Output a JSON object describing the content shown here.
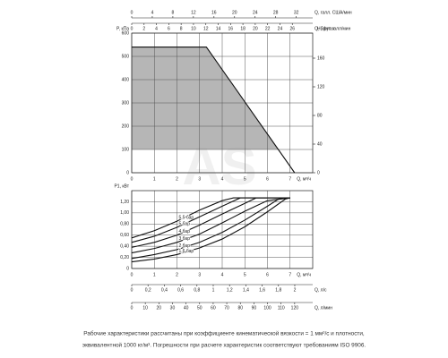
{
  "chart_data": [
    {
      "type": "line",
      "ylabel": "P, кПа",
      "ylim": [
        0,
        600
      ],
      "yticks": [
        0,
        100,
        200,
        300,
        400,
        500,
        600
      ],
      "y2label": "H, футы",
      "y2lim": [
        0,
        195
      ],
      "y2ticks": [
        0,
        40,
        80,
        120,
        160
      ],
      "xlabel": "Q, м³/ч",
      "xlim": [
        0,
        8
      ],
      "xticks": [
        0,
        1,
        2,
        3,
        4,
        5,
        6,
        7
      ],
      "extra_x_axes": [
        {
          "label": "Q, галл. США/мин",
          "lim": [
            0,
            35.2
          ],
          "ticks": [
            0,
            4,
            8,
            12,
            16,
            20,
            24,
            28,
            32
          ]
        },
        {
          "label": "Q, брит. галл/мин",
          "lim": [
            0,
            29.3
          ],
          "ticks": [
            0,
            2,
            4,
            6,
            8,
            10,
            12,
            14,
            16,
            18,
            20,
            22,
            24,
            26
          ]
        }
      ],
      "grid": true,
      "shaded_region": {
        "x": [
          0,
          3.3,
          6.48
        ],
        "upper": [
          540,
          540,
          100
        ],
        "lower": [
          100,
          100,
          100
        ],
        "color": "#a9a9a9"
      },
      "series": [
        {
          "color": "#111111",
          "x": [
            0,
            3.3,
            7.2
          ],
          "values": [
            540,
            540,
            0
          ]
        }
      ]
    },
    {
      "type": "line",
      "ylabel": "P1, кВт",
      "ylim": [
        0,
        1.4
      ],
      "yticks": [
        0,
        {
          "value": 0.2,
          "label": "0,20"
        },
        {
          "value": 0.4,
          "label": "0,40"
        },
        {
          "value": 0.6,
          "label": "0,60"
        },
        {
          "value": 0.8,
          "label": "0,80"
        },
        {
          "value": 1.0,
          "label": "1,00"
        },
        {
          "value": 1.2,
          "label": "1,20"
        }
      ],
      "xlabel": "Q, м³/ч",
      "xlim": [
        0,
        8
      ],
      "xticks": [
        0,
        1,
        2,
        3,
        4,
        5,
        6,
        7
      ],
      "extra_x_axes": [
        {
          "label": "Q, л/с",
          "lim": [
            0,
            2.22
          ],
          "ticks": [
            0,
            {
              "value": 0.2,
              "label": "0,2"
            },
            {
              "value": 0.4,
              "label": "0,4"
            },
            {
              "value": 0.6,
              "label": "0,6"
            },
            {
              "value": 0.8,
              "label": "0,8"
            },
            1,
            {
              "value": 1.2,
              "label": "1,2"
            },
            {
              "value": 1.4,
              "label": "1,4"
            },
            {
              "value": 1.6,
              "label": "1,6"
            },
            {
              "value": 1.8,
              "label": "1,8"
            },
            2
          ]
        },
        {
          "label": "Q, л/мин",
          "lim": [
            0,
            133.3
          ],
          "ticks": [
            0,
            10,
            20,
            30,
            40,
            50,
            60,
            70,
            80,
            90,
            100,
            110,
            120
          ]
        }
      ],
      "grid": true,
      "series": [
        {
          "name": "5,5 бар",
          "color": "#111111",
          "x": [
            0,
            1,
            2,
            3,
            4,
            4.5,
            7
          ],
          "values": [
            0.55,
            0.68,
            0.85,
            1.05,
            1.22,
            1.27,
            1.27
          ]
        },
        {
          "name": "5 бар",
          "color": "#111111",
          "x": [
            0,
            1,
            2,
            3,
            4,
            4.8,
            7
          ],
          "values": [
            0.47,
            0.58,
            0.74,
            0.93,
            1.12,
            1.27,
            1.27
          ]
        },
        {
          "name": "4 бар",
          "color": "#111111",
          "x": [
            0,
            1,
            2,
            3,
            4,
            5,
            5.5,
            7
          ],
          "values": [
            0.38,
            0.47,
            0.6,
            0.78,
            0.98,
            1.17,
            1.27,
            1.27
          ]
        },
        {
          "name": "3 бар",
          "color": "#111111",
          "x": [
            0,
            1,
            2,
            3,
            4,
            5,
            6,
            7
          ],
          "values": [
            0.28,
            0.36,
            0.47,
            0.62,
            0.82,
            1.03,
            1.22,
            1.27
          ]
        },
        {
          "name": "2 бар",
          "color": "#111111",
          "x": [
            0,
            1,
            2,
            3,
            4,
            5,
            6,
            6.5,
            7
          ],
          "values": [
            0.18,
            0.25,
            0.34,
            0.47,
            0.65,
            0.87,
            1.12,
            1.25,
            1.27
          ]
        },
        {
          "name": "1,6 бар",
          "color": "#111111",
          "x": [
            0,
            1,
            2,
            3,
            4,
            5,
            6,
            6.8,
            7
          ],
          "values": [
            0.12,
            0.17,
            0.25,
            0.37,
            0.53,
            0.75,
            1.02,
            1.25,
            1.27
          ]
        }
      ]
    }
  ],
  "watermark": "AS",
  "notes": [
    "Рабочие характеристики рассчитаны при коэффициенте кинематической вязкости = 1 мм²/с и плотности,",
    "эквивалентной 1000 кг/м³. Погрешности при расчете характеристик соответствуют требованиям ISO 9906."
  ]
}
